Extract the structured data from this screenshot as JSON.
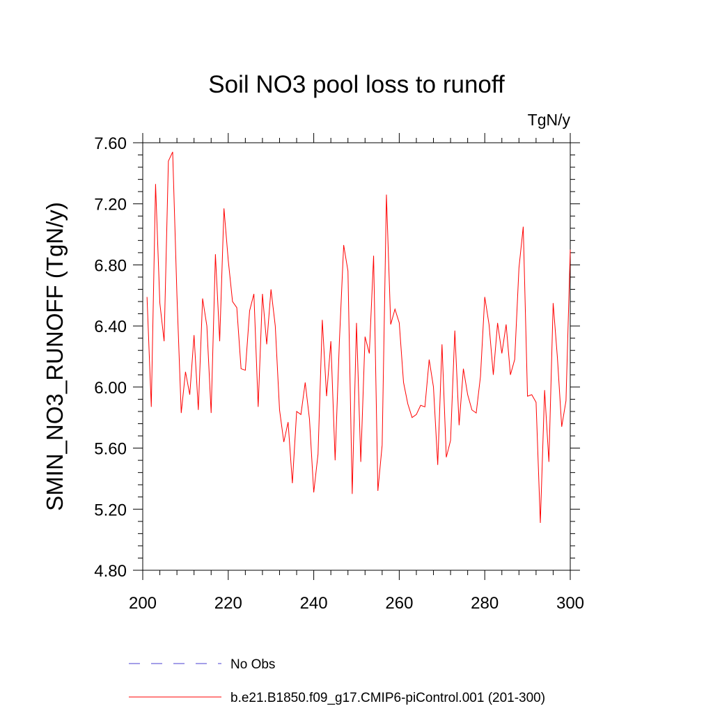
{
  "chart_data": {
    "type": "line",
    "title": "Soil NO3 pool loss to runoff",
    "units": "TgN/y",
    "xlabel": "",
    "ylabel": "SMIN_NO3_RUNOFF  (TgN/y)",
    "xlim": [
      200,
      300
    ],
    "ylim": [
      4.8,
      7.6
    ],
    "x_ticks": [
      "200",
      "220",
      "240",
      "260",
      "280",
      "300"
    ],
    "y_ticks": [
      "4.80",
      "5.20",
      "5.60",
      "6.00",
      "6.40",
      "6.80",
      "7.20",
      "7.60"
    ],
    "grid": false,
    "legend_position": "bottom",
    "series": [
      {
        "name": "b.e21.B1850.f09_g17.CMIP6-piControl.001 (201-300)",
        "color": "#ff0000",
        "line_style": "solid",
        "x": [
          201,
          202,
          203,
          204,
          205,
          206,
          207,
          208,
          209,
          210,
          211,
          212,
          213,
          214,
          215,
          216,
          217,
          218,
          219,
          220,
          221,
          222,
          223,
          224,
          225,
          226,
          227,
          228,
          229,
          230,
          231,
          232,
          233,
          234,
          235,
          236,
          237,
          238,
          239,
          240,
          241,
          242,
          243,
          244,
          245,
          246,
          247,
          248,
          249,
          250,
          251,
          252,
          253,
          254,
          255,
          256,
          257,
          258,
          259,
          260,
          261,
          262,
          263,
          264,
          265,
          266,
          267,
          268,
          269,
          270,
          271,
          272,
          273,
          274,
          275,
          276,
          277,
          278,
          279,
          280,
          281,
          282,
          283,
          284,
          285,
          286,
          287,
          288,
          289,
          290,
          291,
          292,
          293,
          294,
          295,
          296,
          297,
          298,
          299,
          300
        ],
        "values": [
          6.59,
          5.87,
          7.33,
          6.55,
          6.3,
          7.48,
          7.54,
          6.6,
          5.83,
          6.1,
          5.95,
          6.34,
          5.85,
          6.58,
          6.4,
          5.83,
          6.87,
          6.3,
          7.17,
          6.83,
          6.56,
          6.52,
          6.12,
          6.11,
          6.5,
          6.61,
          5.87,
          6.61,
          6.28,
          6.64,
          6.4,
          5.85,
          5.64,
          5.77,
          5.37,
          5.84,
          5.82,
          6.03,
          5.79,
          5.31,
          5.56,
          6.44,
          5.94,
          6.3,
          5.52,
          6.3,
          6.93,
          6.76,
          5.3,
          6.42,
          5.51,
          6.33,
          6.22,
          6.86,
          5.32,
          5.62,
          7.26,
          6.41,
          6.51,
          6.42,
          6.03,
          5.89,
          5.8,
          5.82,
          5.88,
          5.87,
          6.18,
          6.0,
          5.49,
          6.28,
          5.54,
          5.65,
          6.37,
          5.75,
          6.12,
          5.95,
          5.85,
          5.83,
          6.07,
          6.59,
          6.41,
          6.08,
          6.42,
          6.22,
          6.41,
          6.08,
          6.18,
          6.78,
          7.05,
          5.94,
          5.95,
          5.9,
          5.11,
          5.98,
          5.51,
          6.55,
          6.19,
          5.74,
          5.91,
          6.9
        ]
      }
    ],
    "reference_series": {
      "name": "No Obs",
      "color": "#4a3fd0",
      "line_style": "dashed"
    }
  }
}
